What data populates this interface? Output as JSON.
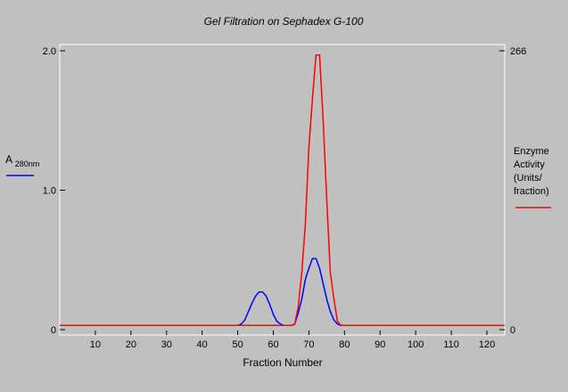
{
  "chart_data": {
    "type": "line",
    "title": "Gel Filtration on Sephadex G-100",
    "xlabel": "Fraction Number",
    "xlim": [
      0,
      125
    ],
    "x_ticks": [
      10,
      20,
      30,
      40,
      50,
      60,
      70,
      80,
      90,
      100,
      110,
      120
    ],
    "left_axis": {
      "label_main": "A",
      "label_sub": "280nm",
      "ylim": [
        0,
        2.0
      ],
      "ticks": [
        {
          "value": 0,
          "label": "0"
        },
        {
          "value": 1.0,
          "label": "1.0"
        },
        {
          "value": 2.0,
          "label": "2.0"
        }
      ],
      "legend_color": "#0000ff"
    },
    "right_axis": {
      "label_lines": [
        "Enzyme",
        "Activity",
        "(Units/",
        "fraction)"
      ],
      "ylim": [
        0,
        266
      ],
      "ticks": [
        {
          "value": 0,
          "label": "0"
        },
        {
          "value": 266,
          "label": "266"
        }
      ],
      "legend_color": "#ff0000"
    },
    "grid": false,
    "series": [
      {
        "axis": "left",
        "color": "#0000ff",
        "x": [
          0,
          50,
          51,
          52,
          53,
          54,
          55,
          56,
          57,
          58,
          59,
          60,
          61,
          62,
          63,
          64,
          65,
          66,
          67,
          68,
          69,
          70,
          71,
          72,
          73,
          74,
          75,
          76,
          77,
          78,
          79,
          80,
          125
        ],
        "values": [
          0.03,
          0.03,
          0.04,
          0.07,
          0.13,
          0.19,
          0.24,
          0.27,
          0.27,
          0.24,
          0.18,
          0.11,
          0.06,
          0.04,
          0.03,
          0.03,
          0.03,
          0.04,
          0.12,
          0.22,
          0.36,
          0.44,
          0.51,
          0.51,
          0.44,
          0.33,
          0.22,
          0.13,
          0.07,
          0.04,
          0.03,
          0.03,
          0.03
        ]
      },
      {
        "axis": "right",
        "color": "#ff0000",
        "x": [
          0,
          65,
          66,
          67,
          68,
          69,
          70,
          71,
          72,
          73,
          74,
          75,
          76,
          77,
          78,
          79,
          80,
          125
        ],
        "values": [
          4,
          4,
          5,
          22,
          55,
          100,
          174,
          220,
          262,
          262,
          200,
          125,
          55,
          30,
          8,
          4,
          4,
          4
        ]
      }
    ]
  }
}
